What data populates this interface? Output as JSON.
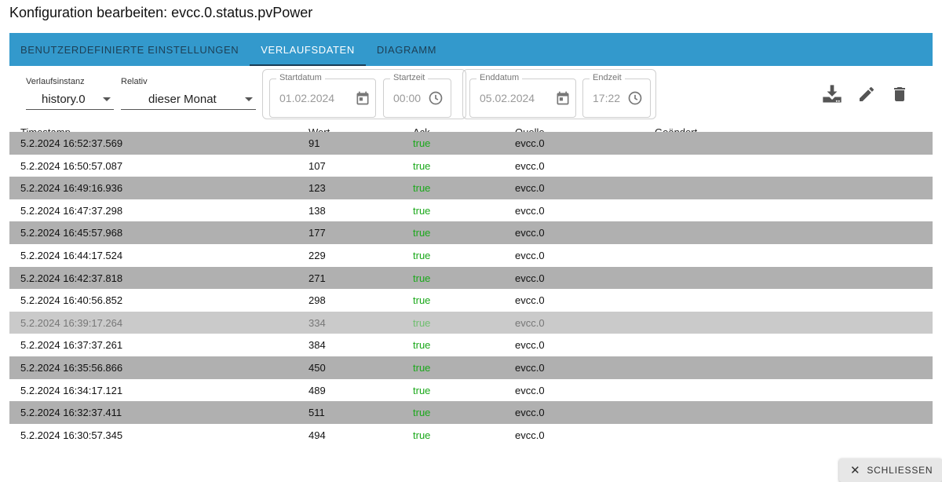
{
  "dialog": {
    "title": "Konfiguration bearbeiten: evcc.0.status.pvPower"
  },
  "tabs": [
    {
      "label": "BENUTZERDEFINIERTE EINSTELLUNGEN",
      "active": false
    },
    {
      "label": "VERLAUFSDATEN",
      "active": true
    },
    {
      "label": "DIAGRAMM",
      "active": false
    }
  ],
  "toolbar": {
    "instance": {
      "label": "Verlaufsinstanz",
      "value": "history.0"
    },
    "relative": {
      "label": "Relativ",
      "value": "dieser Monat"
    },
    "start_date": {
      "label": "Startdatum",
      "value": "01.02.2024",
      "icon": "calendar-icon"
    },
    "start_time": {
      "label": "Startzeit",
      "value": "00:00",
      "icon": "clock-icon"
    },
    "end_date": {
      "label": "Enddatum",
      "value": "05.02.2024",
      "icon": "calendar-icon"
    },
    "end_time": {
      "label": "Endzeit",
      "value": "17:22",
      "icon": "clock-icon"
    },
    "actions": [
      "download-icon",
      "edit-icon",
      "delete-icon"
    ]
  },
  "table": {
    "columns": [
      "Timestamp",
      "Wert",
      "Ack",
      "Quelle",
      "Geändert"
    ],
    "rows": [
      {
        "timestamp": "5.2.2024 16:52:37.569",
        "wert": "91",
        "ack": "true",
        "quelle": "evcc.0",
        "geaendert": ""
      },
      {
        "timestamp": "5.2.2024 16:50:57.087",
        "wert": "107",
        "ack": "true",
        "quelle": "evcc.0",
        "geaendert": ""
      },
      {
        "timestamp": "5.2.2024 16:49:16.936",
        "wert": "123",
        "ack": "true",
        "quelle": "evcc.0",
        "geaendert": ""
      },
      {
        "timestamp": "5.2.2024 16:47:37.298",
        "wert": "138",
        "ack": "true",
        "quelle": "evcc.0",
        "geaendert": ""
      },
      {
        "timestamp": "5.2.2024 16:45:57.968",
        "wert": "177",
        "ack": "true",
        "quelle": "evcc.0",
        "geaendert": ""
      },
      {
        "timestamp": "5.2.2024 16:44:17.524",
        "wert": "229",
        "ack": "true",
        "quelle": "evcc.0",
        "geaendert": ""
      },
      {
        "timestamp": "5.2.2024 16:42:37.818",
        "wert": "271",
        "ack": "true",
        "quelle": "evcc.0",
        "geaendert": ""
      },
      {
        "timestamp": "5.2.2024 16:40:56.852",
        "wert": "298",
        "ack": "true",
        "quelle": "evcc.0",
        "geaendert": ""
      },
      {
        "timestamp": "5.2.2024 16:39:17.264",
        "wert": "334",
        "ack": "true",
        "quelle": "evcc.0",
        "geaendert": ""
      },
      {
        "timestamp": "5.2.2024 16:37:37.261",
        "wert": "384",
        "ack": "true",
        "quelle": "evcc.0",
        "geaendert": ""
      },
      {
        "timestamp": "5.2.2024 16:35:56.866",
        "wert": "450",
        "ack": "true",
        "quelle": "evcc.0",
        "geaendert": ""
      },
      {
        "timestamp": "5.2.2024 16:34:17.121",
        "wert": "489",
        "ack": "true",
        "quelle": "evcc.0",
        "geaendert": ""
      },
      {
        "timestamp": "5.2.2024 16:32:37.411",
        "wert": "511",
        "ack": "true",
        "quelle": "evcc.0",
        "geaendert": ""
      },
      {
        "timestamp": "5.2.2024 16:30:57.345",
        "wert": "494",
        "ack": "true",
        "quelle": "evcc.0",
        "geaendert": ""
      }
    ]
  },
  "footer": {
    "close_label": "SCHLIESSEN"
  },
  "colors": {
    "tab_bar": "#3399cc",
    "ack_true": "#1aa81a",
    "row_shaded": "#b0b0b0"
  }
}
